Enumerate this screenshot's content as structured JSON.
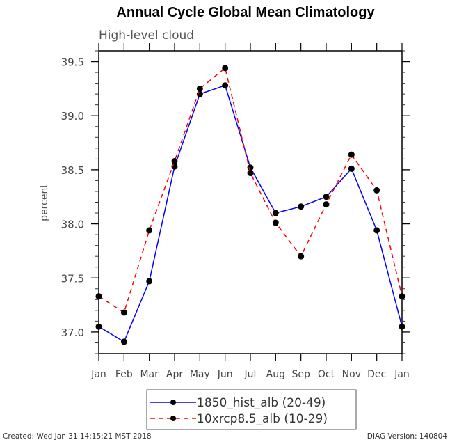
{
  "chart_data": {
    "type": "line",
    "title": "Annual Cycle Global Mean Climatology",
    "subtitle": "High-level cloud",
    "xlabel": "",
    "ylabel": "percent",
    "categories": [
      "Jan",
      "Feb",
      "Mar",
      "Apr",
      "May",
      "Jun",
      "Jul",
      "Aug",
      "Sep",
      "Oct",
      "Nov",
      "Dec",
      "Jan"
    ],
    "ylim": [
      36.8,
      39.6
    ],
    "yticks_major": [
      37.0,
      37.5,
      38.0,
      38.5,
      39.0,
      39.5
    ],
    "ytick_labels": [
      "37.0",
      "37.5",
      "38.0",
      "38.5",
      "39.0",
      "39.5"
    ],
    "ytick_minor_step": 0.1,
    "grid": false,
    "legend_position": "bottom-center",
    "series": [
      {
        "name": "1850_hist_alb (20-49)",
        "color": "#0000ff",
        "dash": "solid",
        "marker": "filled-circle",
        "values": [
          37.05,
          36.91,
          37.47,
          38.53,
          39.2,
          39.28,
          38.52,
          38.1,
          38.16,
          38.25,
          38.51,
          37.94,
          37.05
        ]
      },
      {
        "name": "10xrcp8.5_alb (10-29)",
        "color": "#ff0000",
        "dash": "dashed",
        "marker": "filled-circle",
        "values": [
          37.33,
          37.18,
          37.94,
          38.58,
          39.25,
          39.44,
          38.47,
          38.01,
          37.7,
          38.18,
          38.64,
          38.31,
          37.33
        ]
      }
    ]
  },
  "footer": {
    "created": "Created: Wed Jan 31 14:15:21 MST 2018",
    "version": "DIAG Version: 140804"
  }
}
